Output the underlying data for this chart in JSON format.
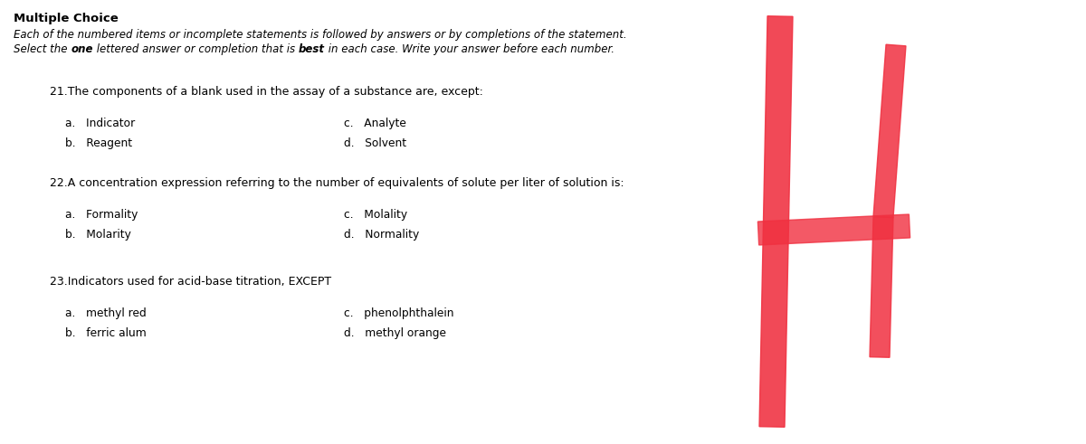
{
  "bg_color": "#ffffff",
  "title_bold": "Multiple Choice",
  "subtitle1": "Each of the numbered items or incomplete statements is followed by answers or by completions of the statement.",
  "sub2_part1": "Select the ",
  "sub2_bold1": "one",
  "sub2_part2": " lettered answer or completion that is ",
  "sub2_bold2": "best",
  "sub2_part3": " in each case. Write your answer before each number.",
  "q1": "21.The components of a blank used in the assay of a substance are, except:",
  "q2": "22.A concentration expression referring to the number of equivalents of solute per liter of solution is:",
  "q3": "23.Indicators used for acid-base titration, EXCEPT",
  "q1_ans": [
    [
      "a.   Indicator",
      "c.   Analyte"
    ],
    [
      "b.   Reagent",
      "d.   Solvent"
    ]
  ],
  "q2_ans": [
    [
      "a.   Formality",
      "c.   Molality"
    ],
    [
      "b.   Molarity",
      "d.   Normality"
    ]
  ],
  "q3_ans": [
    [
      "a.   methyl red",
      "c.   phenolphthalein"
    ],
    [
      "b.   ferric alum",
      "d.   methyl orange"
    ]
  ],
  "red_color": "#f03040",
  "fs_title": 9.5,
  "fs_sub": 8.5,
  "fs_q": 9.0,
  "fs_ans": 8.8
}
